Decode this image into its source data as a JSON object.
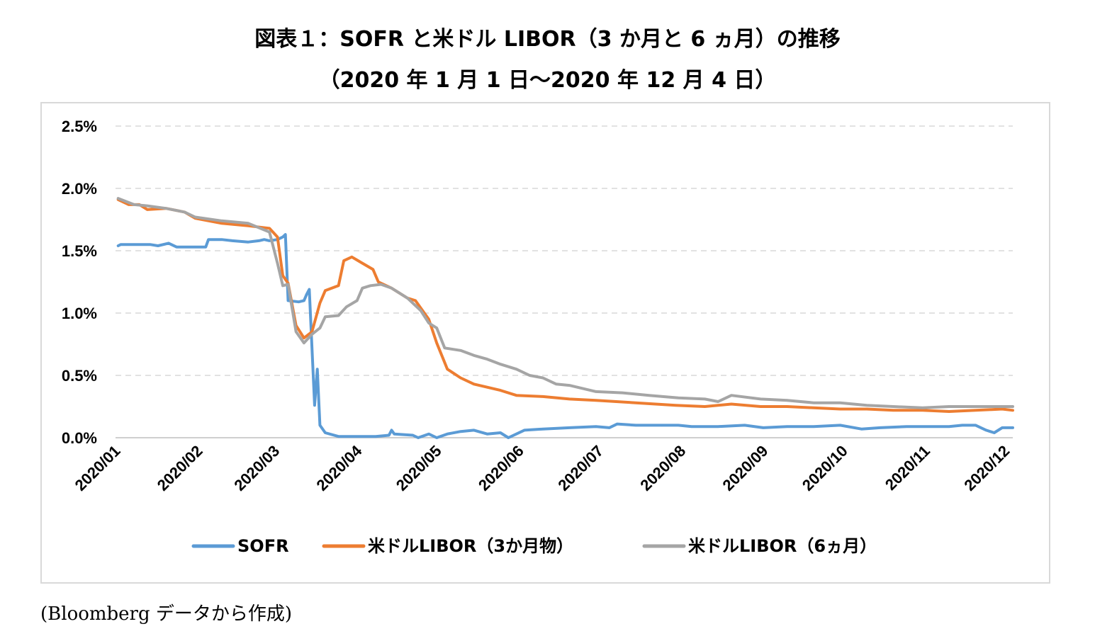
{
  "title_line1": "図表１：SOFR と米ドル LIBOR（3 か月と 6 ヵ月）の推移",
  "title_line2": "（2020 年 1 月 1 日～2020 年 12 月 4 日）",
  "source": "(Bloomberg データから作成)",
  "colors": {
    "sofr": "#5b9bd5",
    "libor3m": "#ed7d31",
    "libor6m": "#a5a5a5",
    "grid": "#d9d9d9"
  },
  "chart_data": {
    "type": "line",
    "title": "",
    "xlabel": "",
    "ylabel": "",
    "ylim": [
      0,
      2.5
    ],
    "yticks": [
      "0.0%",
      "0.5%",
      "1.0%",
      "1.5%",
      "2.0%",
      "2.5%"
    ],
    "ytick_values": [
      0,
      0.5,
      1.0,
      1.5,
      2.0,
      2.5
    ],
    "xticks": [
      "2020/01",
      "2020/02",
      "2020/03",
      "2020/04",
      "2020/05",
      "2020/06",
      "2020/07",
      "2020/08",
      "2020/09",
      "2020/10",
      "2020/11",
      "2020/12"
    ],
    "xlim": [
      "2020-01-01",
      "2020-12-04"
    ],
    "grid": "horizontal dashed",
    "legend_position": "bottom",
    "series": [
      {
        "name": "SOFR",
        "points": [
          [
            "2020-01-02",
            1.54
          ],
          [
            "2020-01-03",
            1.55
          ],
          [
            "2020-01-08",
            1.55
          ],
          [
            "2020-01-14",
            1.55
          ],
          [
            "2020-01-17",
            1.54
          ],
          [
            "2020-01-21",
            1.56
          ],
          [
            "2020-01-24",
            1.53
          ],
          [
            "2020-01-31",
            1.53
          ],
          [
            "2020-02-04",
            1.53
          ],
          [
            "2020-02-05",
            1.59
          ],
          [
            "2020-02-10",
            1.59
          ],
          [
            "2020-02-14",
            1.58
          ],
          [
            "2020-02-20",
            1.57
          ],
          [
            "2020-02-24",
            1.58
          ],
          [
            "2020-02-26",
            1.59
          ],
          [
            "2020-02-28",
            1.58
          ],
          [
            "2020-03-02",
            1.59
          ],
          [
            "2020-03-04",
            1.61
          ],
          [
            "2020-03-05",
            1.63
          ],
          [
            "2020-03-06",
            1.1
          ],
          [
            "2020-03-10",
            1.09
          ],
          [
            "2020-03-12",
            1.1
          ],
          [
            "2020-03-13",
            1.15
          ],
          [
            "2020-03-14",
            1.19
          ],
          [
            "2020-03-16",
            0.26
          ],
          [
            "2020-03-17",
            0.55
          ],
          [
            "2020-03-18",
            0.1
          ],
          [
            "2020-03-20",
            0.04
          ],
          [
            "2020-03-25",
            0.01
          ],
          [
            "2020-04-01",
            0.01
          ],
          [
            "2020-04-08",
            0.01
          ],
          [
            "2020-04-13",
            0.02
          ],
          [
            "2020-04-14",
            0.06
          ],
          [
            "2020-04-15",
            0.03
          ],
          [
            "2020-04-22",
            0.02
          ],
          [
            "2020-04-24",
            0.0
          ],
          [
            "2020-04-28",
            0.03
          ],
          [
            "2020-05-01",
            0.0
          ],
          [
            "2020-05-05",
            0.03
          ],
          [
            "2020-05-10",
            0.05
          ],
          [
            "2020-05-15",
            0.06
          ],
          [
            "2020-05-20",
            0.03
          ],
          [
            "2020-05-25",
            0.04
          ],
          [
            "2020-05-28",
            0.0
          ],
          [
            "2020-06-03",
            0.06
          ],
          [
            "2020-06-10",
            0.07
          ],
          [
            "2020-06-20",
            0.08
          ],
          [
            "2020-06-30",
            0.09
          ],
          [
            "2020-07-05",
            0.08
          ],
          [
            "2020-07-08",
            0.11
          ],
          [
            "2020-07-15",
            0.1
          ],
          [
            "2020-07-25",
            0.1
          ],
          [
            "2020-07-31",
            0.1
          ],
          [
            "2020-08-05",
            0.09
          ],
          [
            "2020-08-15",
            0.09
          ],
          [
            "2020-08-25",
            0.1
          ],
          [
            "2020-09-01",
            0.08
          ],
          [
            "2020-09-10",
            0.09
          ],
          [
            "2020-09-20",
            0.09
          ],
          [
            "2020-09-30",
            0.1
          ],
          [
            "2020-10-08",
            0.07
          ],
          [
            "2020-10-15",
            0.08
          ],
          [
            "2020-10-25",
            0.09
          ],
          [
            "2020-11-01",
            0.09
          ],
          [
            "2020-11-10",
            0.09
          ],
          [
            "2020-11-15",
            0.1
          ],
          [
            "2020-11-20",
            0.1
          ],
          [
            "2020-11-24",
            0.06
          ],
          [
            "2020-11-27",
            0.04
          ],
          [
            "2020-11-30",
            0.08
          ],
          [
            "2020-12-04",
            0.08
          ]
        ]
      },
      {
        "name": "米ドルLIBOR（3か月物）",
        "points": [
          [
            "2020-01-02",
            1.91
          ],
          [
            "2020-01-06",
            1.87
          ],
          [
            "2020-01-10",
            1.87
          ],
          [
            "2020-01-13",
            1.83
          ],
          [
            "2020-01-20",
            1.84
          ],
          [
            "2020-01-27",
            1.81
          ],
          [
            "2020-01-31",
            1.76
          ],
          [
            "2020-02-10",
            1.72
          ],
          [
            "2020-02-20",
            1.7
          ],
          [
            "2020-02-28",
            1.68
          ],
          [
            "2020-03-02",
            1.61
          ],
          [
            "2020-03-04",
            1.3
          ],
          [
            "2020-03-06",
            1.24
          ],
          [
            "2020-03-09",
            0.9
          ],
          [
            "2020-03-12",
            0.8
          ],
          [
            "2020-03-15",
            0.85
          ],
          [
            "2020-03-18",
            1.08
          ],
          [
            "2020-03-20",
            1.18
          ],
          [
            "2020-03-25",
            1.22
          ],
          [
            "2020-03-27",
            1.42
          ],
          [
            "2020-03-30",
            1.45
          ],
          [
            "2020-04-03",
            1.4
          ],
          [
            "2020-04-07",
            1.35
          ],
          [
            "2020-04-09",
            1.25
          ],
          [
            "2020-04-14",
            1.2
          ],
          [
            "2020-04-20",
            1.12
          ],
          [
            "2020-04-23",
            1.1
          ],
          [
            "2020-04-28",
            0.95
          ],
          [
            "2020-05-01",
            0.76
          ],
          [
            "2020-05-05",
            0.55
          ],
          [
            "2020-05-10",
            0.48
          ],
          [
            "2020-05-15",
            0.43
          ],
          [
            "2020-05-25",
            0.38
          ],
          [
            "2020-05-31",
            0.34
          ],
          [
            "2020-06-10",
            0.33
          ],
          [
            "2020-06-20",
            0.31
          ],
          [
            "2020-06-30",
            0.3
          ],
          [
            "2020-07-15",
            0.28
          ],
          [
            "2020-07-30",
            0.26
          ],
          [
            "2020-08-10",
            0.25
          ],
          [
            "2020-08-20",
            0.27
          ],
          [
            "2020-08-31",
            0.25
          ],
          [
            "2020-09-10",
            0.25
          ],
          [
            "2020-09-20",
            0.24
          ],
          [
            "2020-09-30",
            0.23
          ],
          [
            "2020-10-10",
            0.23
          ],
          [
            "2020-10-20",
            0.22
          ],
          [
            "2020-10-31",
            0.22
          ],
          [
            "2020-11-10",
            0.21
          ],
          [
            "2020-11-20",
            0.22
          ],
          [
            "2020-11-30",
            0.23
          ],
          [
            "2020-12-04",
            0.22
          ]
        ]
      },
      {
        "name": "米ドルLIBOR（6ヵ月）",
        "points": [
          [
            "2020-01-02",
            1.92
          ],
          [
            "2020-01-08",
            1.87
          ],
          [
            "2020-01-13",
            1.86
          ],
          [
            "2020-01-20",
            1.84
          ],
          [
            "2020-01-27",
            1.81
          ],
          [
            "2020-01-31",
            1.77
          ],
          [
            "2020-02-10",
            1.74
          ],
          [
            "2020-02-20",
            1.72
          ],
          [
            "2020-02-28",
            1.65
          ],
          [
            "2020-03-02",
            1.4
          ],
          [
            "2020-03-04",
            1.22
          ],
          [
            "2020-03-06",
            1.23
          ],
          [
            "2020-03-09",
            0.85
          ],
          [
            "2020-03-12",
            0.76
          ],
          [
            "2020-03-15",
            0.83
          ],
          [
            "2020-03-18",
            0.88
          ],
          [
            "2020-03-20",
            0.97
          ],
          [
            "2020-03-25",
            0.98
          ],
          [
            "2020-03-28",
            1.05
          ],
          [
            "2020-04-01",
            1.1
          ],
          [
            "2020-04-03",
            1.2
          ],
          [
            "2020-04-06",
            1.22
          ],
          [
            "2020-04-10",
            1.23
          ],
          [
            "2020-04-14",
            1.2
          ],
          [
            "2020-04-20",
            1.12
          ],
          [
            "2020-04-25",
            1.02
          ],
          [
            "2020-04-28",
            0.92
          ],
          [
            "2020-05-01",
            0.88
          ],
          [
            "2020-05-04",
            0.72
          ],
          [
            "2020-05-10",
            0.7
          ],
          [
            "2020-05-15",
            0.66
          ],
          [
            "2020-05-20",
            0.63
          ],
          [
            "2020-05-25",
            0.59
          ],
          [
            "2020-05-31",
            0.55
          ],
          [
            "2020-06-05",
            0.5
          ],
          [
            "2020-06-10",
            0.48
          ],
          [
            "2020-06-15",
            0.43
          ],
          [
            "2020-06-20",
            0.42
          ],
          [
            "2020-06-30",
            0.37
          ],
          [
            "2020-07-10",
            0.36
          ],
          [
            "2020-07-20",
            0.34
          ],
          [
            "2020-07-31",
            0.32
          ],
          [
            "2020-08-10",
            0.31
          ],
          [
            "2020-08-15",
            0.29
          ],
          [
            "2020-08-20",
            0.34
          ],
          [
            "2020-08-31",
            0.31
          ],
          [
            "2020-09-10",
            0.3
          ],
          [
            "2020-09-20",
            0.28
          ],
          [
            "2020-09-30",
            0.28
          ],
          [
            "2020-10-10",
            0.26
          ],
          [
            "2020-10-20",
            0.25
          ],
          [
            "2020-10-31",
            0.24
          ],
          [
            "2020-11-10",
            0.25
          ],
          [
            "2020-11-20",
            0.25
          ],
          [
            "2020-11-30",
            0.25
          ],
          [
            "2020-12-04",
            0.25
          ]
        ]
      }
    ]
  }
}
